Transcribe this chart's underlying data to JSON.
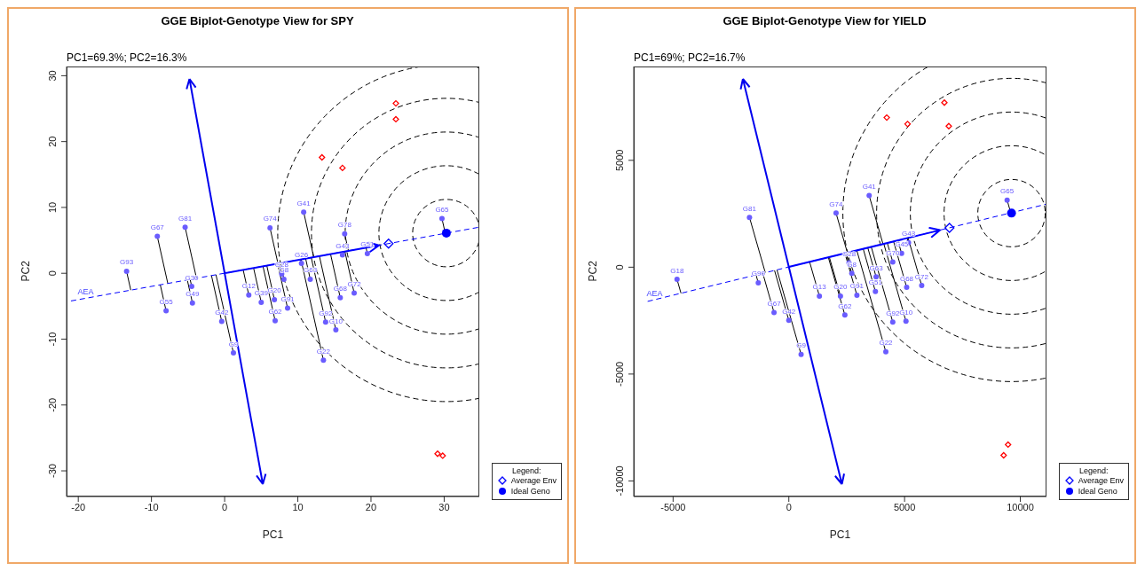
{
  "chart_data": [
    {
      "type": "scatter",
      "title": "GGE Biplot-Genotype View for SPY",
      "subtitle": "PC1=69.3%; PC2=16.3%",
      "xlabel": "PC1",
      "ylabel": "PC2",
      "xlim": [
        -21.6,
        34.8
      ],
      "ylim": [
        -33.9,
        31.4
      ],
      "xticks": [
        -20,
        -10,
        0,
        10,
        20,
        30
      ],
      "yticks": [
        -30,
        -20,
        -10,
        0,
        10,
        20,
        30
      ],
      "legend": "bottom right",
      "legend_title": "Legend:",
      "series": [
        {
          "type": "line",
          "color": "#0000ff",
          "line_style": "dashed",
          "x": [
            -21,
            34.8
          ],
          "values": [
            -4.2,
            7.0
          ]
        },
        {
          "color": "#6a5cff",
          "marker": "circle",
          "x": [
            -5.4,
            -9.2,
            6.2,
            1.2,
            -0.4,
            -4.4,
            -4.5,
            8.6,
            6.9,
            6.8,
            7.8,
            8.1,
            -13.4,
            3.3,
            5.0,
            -8.0,
            10.8,
            16.4,
            19.5,
            16.1,
            10.5,
            11.7,
            15.8,
            17.7,
            13.8,
            15.2,
            13.5,
            29.7
          ],
          "values": [
            7.0,
            5.6,
            6.9,
            -12.1,
            -7.3,
            -4.5,
            -2.0,
            -5.3,
            -7.2,
            -4.0,
            -0.1,
            -0.9,
            0.3,
            -3.3,
            -4.4,
            -5.7,
            9.3,
            6.0,
            3.0,
            2.8,
            1.5,
            -0.9,
            -3.7,
            -3.0,
            -7.4,
            -8.6,
            -13.2,
            8.3
          ],
          "value_labels": [
            "G81",
            "G67",
            "G74",
            "G9",
            "G42",
            "G49",
            "G30",
            "G91",
            "G62",
            "G20",
            "G28",
            "G8",
            "G93",
            "G12",
            "G39",
            "G55",
            "G41",
            "G78",
            "G51",
            "G43",
            "G26",
            "G63",
            "G68",
            "G72",
            "G92",
            "G10",
            "G22",
            "G65"
          ]
        },
        {
          "color": "#ff0000",
          "marker": "diamond",
          "x": [
            23.4,
            23.4,
            13.3,
            16.1,
            29.1,
            29.8
          ],
          "values": [
            25.8,
            23.4,
            17.6,
            16.0,
            -27.4,
            -27.7
          ]
        },
        {
          "name": "Average Env",
          "color": "#0000ff",
          "marker": "diamond",
          "x": [
            22.4
          ],
          "values": [
            4.5
          ]
        },
        {
          "name": "Ideal Geno",
          "color": "#0000ff",
          "marker": "circle",
          "x": [
            30.3
          ],
          "values": [
            6.1
          ]
        }
      ],
      "annotations": [
        {
          "text": "AEA",
          "x": -19,
          "y": -3.8
        }
      ]
    },
    {
      "type": "scatter",
      "title": "GGE Biplot-Genotype View for YIELD",
      "subtitle": "PC1=69%; PC2=16.7%",
      "xlabel": "PC1",
      "ylabel": "PC2",
      "xlim": [
        -6700,
        11130
      ],
      "ylim": [
        -10730,
        9390
      ],
      "xticks": [
        -5000,
        0,
        5000,
        10000
      ],
      "yticks": [
        -10000,
        -5000,
        0,
        5000
      ],
      "legend": "bottom right",
      "legend_title": "Legend:",
      "series": [
        {
          "type": "line",
          "color": "#0000ff",
          "line_style": "dashed",
          "x": [
            -6100,
            11130
          ],
          "values": [
            -1600,
            2950
          ]
        },
        {
          "color": "#6a5cff",
          "marker": "circle",
          "x": [
            -1700,
            2040,
            530,
            -640,
            0,
            -1320,
            2230,
            2940,
            2420,
            1320,
            -4830,
            2600,
            2720,
            3470,
            5170,
            4870,
            4490,
            3770,
            3740,
            5090,
            5740,
            4490,
            5060,
            4190,
            9430
          ],
          "values": [
            2330,
            2530,
            -4080,
            -2120,
            -2490,
            -730,
            -1350,
            -1310,
            -2240,
            -1350,
            -570,
            200,
            -290,
            3350,
            1140,
            650,
            240,
            -450,
            -1140,
            -940,
            -860,
            -2570,
            -2530,
            -3960,
            3140
          ],
          "value_labels": [
            "G81",
            "G74",
            "G9",
            "G67",
            "G42",
            "G90",
            "G20",
            "G91",
            "G62",
            "G13",
            "G18",
            "G28",
            "G8",
            "G41",
            "G43",
            "G45",
            "G70",
            "G63",
            "G51",
            "G68",
            "G72",
            "G92",
            "G10",
            "G22",
            "G65"
          ]
        },
        {
          "color": "#ff0000",
          "marker": "diamond",
          "x": [
            4230,
            5130,
            6720,
            6910,
            9470,
            9280
          ],
          "values": [
            7000,
            6700,
            7700,
            6600,
            -8300,
            -8800
          ]
        },
        {
          "name": "Average Env",
          "color": "#0000ff",
          "marker": "diamond",
          "x": [
            6940
          ],
          "values": [
            1840
          ]
        },
        {
          "name": "Ideal Geno",
          "color": "#0000ff",
          "marker": "circle",
          "x": [
            9620
          ],
          "values": [
            2530
          ]
        }
      ],
      "annotations": [
        {
          "text": "AEA",
          "x": -5800,
          "y": -1520
        }
      ]
    }
  ]
}
